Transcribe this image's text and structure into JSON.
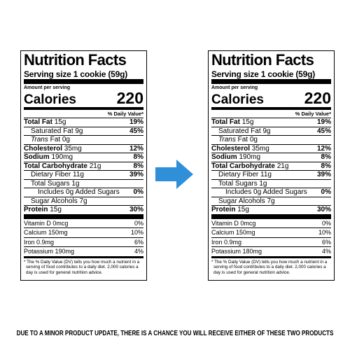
{
  "labels": [
    {
      "title": "Nutrition Facts",
      "serving_size": "Serving size 1 cookie (59g)",
      "amount_per_serving": "Amount per serving",
      "calories_label": "Calories",
      "calories": "220",
      "dv_header": "% Daily Value*",
      "nutrients": [
        {
          "name": "Total Fat",
          "amount": "15g",
          "dv": "19%",
          "style": "main"
        },
        {
          "name": "Saturated Fat 9g",
          "dv": "45%",
          "style": "sub"
        },
        {
          "name": "Trans",
          "amount": "Fat 0g",
          "style": "sub",
          "italic": true
        },
        {
          "name": "Cholesterol",
          "amount": "35mg",
          "dv": "12%",
          "style": "main"
        },
        {
          "name": "Sodium",
          "amount": "190mg",
          "dv": "8%",
          "style": "main"
        },
        {
          "name": "Total Carbohydrate",
          "amount": "21g",
          "dv": "8%",
          "style": "main"
        },
        {
          "name": "Dietary Fiber 11g",
          "dv": "39%",
          "style": "sub"
        },
        {
          "name": "Total Sugars 1g",
          "style": "sub"
        },
        {
          "name": "Includes 0g Added Sugars",
          "dv": "0%",
          "style": "sub2"
        },
        {
          "name": "Sugar Alcohols 7g",
          "style": "sub"
        },
        {
          "name": "Protein",
          "amount": "15g",
          "dv": "30%",
          "style": "main"
        }
      ],
      "vitamins": [
        {
          "name": "Vitamin D 0mcg",
          "dv": "0%"
        },
        {
          "name": "Calcium 150mg",
          "dv": "10%"
        },
        {
          "name": "Iron 0.9mg",
          "dv": "6%"
        },
        {
          "name": "Potassium 190mg",
          "dv": "4%"
        }
      ],
      "footnote": "* The % Daily Value (DV) tells you how much a nutrient in a serving of food contributes to a daily diet. 2,000 calories a day is used for general nutrition advice."
    },
    {
      "title": "Nutrition Facts",
      "serving_size": "Serving size 1 cookie (59g)",
      "amount_per_serving": "Amount per serving",
      "calories_label": "Calories",
      "calories": "220",
      "dv_header": "% Daily Value*",
      "nutrients": [
        {
          "name": "Total Fat",
          "amount": "15g",
          "dv": "19%",
          "style": "main"
        },
        {
          "name": "Saturated Fat 9g",
          "dv": "45%",
          "style": "sub"
        },
        {
          "name": "Trans",
          "amount": "Fat 0g",
          "style": "sub",
          "italic": true
        },
        {
          "name": "Cholesterol",
          "amount": "35mg",
          "dv": "12%",
          "style": "main"
        },
        {
          "name": "Sodium",
          "amount": "190mg",
          "dv": "8%",
          "style": "main"
        },
        {
          "name": "Total Carbohydrate",
          "amount": "21g",
          "dv": "8%",
          "style": "main"
        },
        {
          "name": "Dietary Fiber 11g",
          "dv": "39%",
          "style": "sub"
        },
        {
          "name": "Total Sugars 1g",
          "style": "sub"
        },
        {
          "name": "Includes 0g Added Sugars",
          "dv": "0%",
          "style": "sub2"
        },
        {
          "name": "Sugar Alcohols 7g",
          "style": "sub"
        },
        {
          "name": "Protein",
          "amount": "15g",
          "dv": "30%",
          "style": "main"
        }
      ],
      "vitamins": [
        {
          "name": "Vitamin D 0mcg",
          "dv": "0%"
        },
        {
          "name": "Calcium 150mg",
          "dv": "10%"
        },
        {
          "name": "Iron 0.9mg",
          "dv": "6%"
        },
        {
          "name": "Potassium 180mg",
          "dv": "4%"
        }
      ],
      "footnote": "* The % Daily Value (DV) tells you how much a nutrient in a serving of food contributes to a daily diet. 2,000 calories a day is used for general nutrition advice."
    }
  ],
  "notice": "DUE TO A MINOR PRODUCT UPDATE, THERE IS A CHANCE YOU WILL RECEIVE EITHER OF THESE TWO PRODUCTS"
}
